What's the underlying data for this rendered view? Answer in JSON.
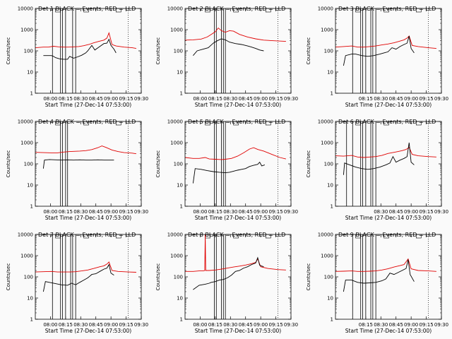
{
  "common": {
    "title_suffix": " BLACK = Events, RED = LLD",
    "xlabel": "Start Time (27-Dec-14 07:53:00)",
    "ylabel": "Counts/sec",
    "colors": {
      "events": "#000000",
      "lld": "#e00000",
      "background": "#fafafa"
    },
    "yscale": "log",
    "ylim": [
      1,
      10000
    ],
    "yticks": [
      "1",
      "10",
      "100",
      "1000",
      "10000"
    ],
    "xlim_minutes": [
      -8,
      97
    ]
  },
  "chart_data": [
    {
      "type": "line",
      "title": "Det 1",
      "xticks": [
        "08:00",
        "08:15",
        "08:30",
        "08:45",
        "09:00",
        "09:15",
        "09:30"
      ],
      "markers": [
        9,
        17,
        19,
        22,
        29,
        32
      ],
      "events": [
        [
          0,
          60
        ],
        [
          8,
          60
        ],
        [
          10,
          55
        ],
        [
          12,
          48
        ],
        [
          16,
          42
        ],
        [
          20,
          40
        ],
        [
          24,
          40
        ],
        [
          26,
          55
        ],
        [
          30,
          45
        ],
        [
          34,
          52
        ],
        [
          38,
          62
        ],
        [
          42,
          80
        ],
        [
          44,
          100
        ],
        [
          48,
          180
        ],
        [
          51,
          110
        ],
        [
          55,
          150
        ],
        [
          60,
          220
        ],
        [
          63,
          230
        ],
        [
          65,
          350
        ],
        [
          67,
          180
        ],
        [
          70,
          120
        ],
        [
          72,
          80
        ]
      ],
      "lld": [
        [
          -8,
          140
        ],
        [
          0,
          150
        ],
        [
          5,
          150
        ],
        [
          10,
          165
        ],
        [
          15,
          155
        ],
        [
          20,
          150
        ],
        [
          25,
          150
        ],
        [
          30,
          155
        ],
        [
          35,
          160
        ],
        [
          40,
          175
        ],
        [
          45,
          200
        ],
        [
          50,
          240
        ],
        [
          55,
          280
        ],
        [
          60,
          320
        ],
        [
          63,
          400
        ],
        [
          65,
          700
        ],
        [
          68,
          200
        ],
        [
          72,
          170
        ],
        [
          80,
          150
        ],
        [
          88,
          140
        ],
        [
          92,
          130
        ]
      ]
    },
    {
      "type": "line",
      "title": "Det 2",
      "xticks": [
        "08:00",
        "08:15",
        "08:30",
        "08:45",
        "09:00",
        "09:15",
        "09:30"
      ],
      "markers": [
        21,
        23,
        28,
        30,
        32
      ],
      "events": [
        [
          0,
          60
        ],
        [
          4,
          100
        ],
        [
          10,
          120
        ],
        [
          15,
          140
        ],
        [
          20,
          230
        ],
        [
          24,
          300
        ],
        [
          28,
          370
        ],
        [
          32,
          330
        ],
        [
          36,
          260
        ],
        [
          42,
          220
        ],
        [
          48,
          200
        ],
        [
          54,
          170
        ],
        [
          58,
          150
        ],
        [
          62,
          130
        ],
        [
          66,
          110
        ],
        [
          70,
          100
        ]
      ],
      "lld": [
        [
          -8,
          320
        ],
        [
          0,
          330
        ],
        [
          8,
          360
        ],
        [
          14,
          450
        ],
        [
          18,
          600
        ],
        [
          22,
          800
        ],
        [
          25,
          1200
        ],
        [
          28,
          900
        ],
        [
          32,
          750
        ],
        [
          36,
          900
        ],
        [
          40,
          850
        ],
        [
          46,
          600
        ],
        [
          54,
          450
        ],
        [
          62,
          370
        ],
        [
          70,
          320
        ],
        [
          80,
          300
        ],
        [
          92,
          280
        ]
      ]
    },
    {
      "type": "line",
      "title": "Det 3",
      "xticks": [
        "08:15",
        "08:30",
        "08:45",
        "09:00",
        "09:15",
        "09:30"
      ],
      "markers": [
        9,
        17,
        19,
        22,
        27,
        29,
        32
      ],
      "events": [
        [
          0,
          20
        ],
        [
          2,
          60
        ],
        [
          8,
          70
        ],
        [
          12,
          70
        ],
        [
          18,
          60
        ],
        [
          24,
          55
        ],
        [
          30,
          60
        ],
        [
          36,
          70
        ],
        [
          40,
          80
        ],
        [
          44,
          90
        ],
        [
          48,
          140
        ],
        [
          52,
          120
        ],
        [
          56,
          160
        ],
        [
          60,
          200
        ],
        [
          63,
          230
        ],
        [
          65,
          500
        ],
        [
          67,
          130
        ],
        [
          70,
          80
        ]
      ],
      "lld": [
        [
          -8,
          150
        ],
        [
          0,
          160
        ],
        [
          8,
          170
        ],
        [
          14,
          150
        ],
        [
          20,
          150
        ],
        [
          26,
          160
        ],
        [
          32,
          170
        ],
        [
          38,
          190
        ],
        [
          44,
          210
        ],
        [
          50,
          240
        ],
        [
          55,
          280
        ],
        [
          60,
          330
        ],
        [
          63,
          400
        ],
        [
          65,
          500
        ],
        [
          68,
          180
        ],
        [
          74,
          160
        ],
        [
          84,
          140
        ],
        [
          92,
          130
        ]
      ]
    },
    {
      "type": "line",
      "title": "Det 4",
      "xticks": [
        "08:00",
        "08:15",
        "08:30",
        "08:45",
        "09:00",
        "09:15",
        "09:30"
      ],
      "markers": [
        17,
        19,
        22,
        24
      ],
      "events": [
        [
          0,
          60
        ],
        [
          1,
          150
        ],
        [
          6,
          160
        ],
        [
          12,
          155
        ],
        [
          18,
          150
        ],
        [
          24,
          155
        ],
        [
          30,
          150
        ],
        [
          36,
          155
        ],
        [
          42,
          150
        ],
        [
          48,
          150
        ],
        [
          54,
          155
        ],
        [
          60,
          150
        ],
        [
          66,
          150
        ],
        [
          70,
          150
        ]
      ],
      "lld": [
        [
          -8,
          350
        ],
        [
          0,
          340
        ],
        [
          8,
          330
        ],
        [
          14,
          330
        ],
        [
          20,
          360
        ],
        [
          26,
          380
        ],
        [
          30,
          390
        ],
        [
          36,
          400
        ],
        [
          42,
          420
        ],
        [
          48,
          470
        ],
        [
          54,
          580
        ],
        [
          58,
          700
        ],
        [
          62,
          600
        ],
        [
          68,
          450
        ],
        [
          74,
          380
        ],
        [
          80,
          340
        ],
        [
          88,
          320
        ],
        [
          92,
          300
        ]
      ]
    },
    {
      "type": "line",
      "title": "Det 5",
      "xticks": [
        "08:00",
        "08:15",
        "08:30",
        "08:45",
        "09:00",
        "09:15",
        "09:30"
      ],
      "markers": [
        21,
        23,
        28,
        30,
        32
      ],
      "events": [
        [
          0,
          12
        ],
        [
          2,
          60
        ],
        [
          8,
          55
        ],
        [
          14,
          48
        ],
        [
          20,
          43
        ],
        [
          26,
          40
        ],
        [
          32,
          38
        ],
        [
          36,
          40
        ],
        [
          40,
          45
        ],
        [
          44,
          50
        ],
        [
          48,
          55
        ],
        [
          52,
          60
        ],
        [
          56,
          75
        ],
        [
          60,
          85
        ],
        [
          64,
          95
        ],
        [
          66,
          120
        ],
        [
          68,
          80
        ],
        [
          71,
          90
        ]
      ],
      "lld": [
        [
          -8,
          200
        ],
        [
          0,
          180
        ],
        [
          6,
          180
        ],
        [
          12,
          200
        ],
        [
          16,
          170
        ],
        [
          22,
          165
        ],
        [
          28,
          160
        ],
        [
          32,
          165
        ],
        [
          38,
          180
        ],
        [
          44,
          230
        ],
        [
          50,
          330
        ],
        [
          56,
          500
        ],
        [
          60,
          580
        ],
        [
          64,
          480
        ],
        [
          70,
          400
        ],
        [
          78,
          280
        ],
        [
          86,
          200
        ],
        [
          92,
          170
        ]
      ]
    },
    {
      "type": "line",
      "title": "Det 6",
      "xticks": [
        "08:30",
        "08:45",
        "09:00",
        "09:15",
        "09:30"
      ],
      "markers": [
        3,
        9,
        17,
        19,
        22,
        27,
        29,
        32
      ],
      "events": [
        [
          0,
          30
        ],
        [
          1,
          110
        ],
        [
          6,
          90
        ],
        [
          12,
          70
        ],
        [
          18,
          60
        ],
        [
          24,
          55
        ],
        [
          30,
          60
        ],
        [
          36,
          70
        ],
        [
          42,
          90
        ],
        [
          46,
          110
        ],
        [
          49,
          220
        ],
        [
          52,
          120
        ],
        [
          56,
          150
        ],
        [
          60,
          180
        ],
        [
          63,
          220
        ],
        [
          65,
          1000
        ],
        [
          67,
          120
        ],
        [
          70,
          90
        ]
      ],
      "lld": [
        [
          -8,
          240
        ],
        [
          0,
          230
        ],
        [
          8,
          250
        ],
        [
          14,
          210
        ],
        [
          20,
          200
        ],
        [
          26,
          210
        ],
        [
          32,
          220
        ],
        [
          38,
          250
        ],
        [
          44,
          310
        ],
        [
          50,
          350
        ],
        [
          54,
          380
        ],
        [
          58,
          420
        ],
        [
          62,
          480
        ],
        [
          65,
          600
        ],
        [
          68,
          280
        ],
        [
          74,
          240
        ],
        [
          84,
          220
        ],
        [
          92,
          210
        ]
      ]
    },
    {
      "type": "line",
      "title": "Det 7",
      "xticks": [
        "08:00",
        "08:15",
        "08:30",
        "08:45",
        "09:00",
        "09:15",
        "09:30"
      ],
      "markers": [
        9,
        17,
        19,
        22,
        27,
        29,
        32
      ],
      "events": [
        [
          0,
          20
        ],
        [
          2,
          60
        ],
        [
          6,
          55
        ],
        [
          12,
          48
        ],
        [
          18,
          42
        ],
        [
          24,
          40
        ],
        [
          28,
          50
        ],
        [
          32,
          42
        ],
        [
          36,
          55
        ],
        [
          40,
          70
        ],
        [
          44,
          90
        ],
        [
          48,
          130
        ],
        [
          52,
          140
        ],
        [
          56,
          180
        ],
        [
          60,
          230
        ],
        [
          63,
          260
        ],
        [
          65,
          380
        ],
        [
          67,
          150
        ],
        [
          70,
          120
        ]
      ],
      "lld": [
        [
          -8,
          170
        ],
        [
          0,
          175
        ],
        [
          8,
          180
        ],
        [
          14,
          170
        ],
        [
          20,
          170
        ],
        [
          26,
          170
        ],
        [
          32,
          175
        ],
        [
          38,
          190
        ],
        [
          44,
          210
        ],
        [
          50,
          250
        ],
        [
          56,
          300
        ],
        [
          60,
          330
        ],
        [
          63,
          400
        ],
        [
          65,
          500
        ],
        [
          68,
          200
        ],
        [
          74,
          180
        ],
        [
          84,
          170
        ],
        [
          92,
          165
        ]
      ]
    },
    {
      "type": "line",
      "title": "Det 8",
      "xticks": [
        "08:00",
        "08:15",
        "08:30",
        "08:45",
        "09:00",
        "09:15",
        "09:30"
      ],
      "markers": [
        21,
        23,
        28,
        30,
        32
      ],
      "events": [
        [
          0,
          25
        ],
        [
          6,
          40
        ],
        [
          12,
          45
        ],
        [
          16,
          50
        ],
        [
          18,
          55
        ],
        [
          22,
          60
        ],
        [
          26,
          70
        ],
        [
          30,
          75
        ],
        [
          34,
          90
        ],
        [
          38,
          120
        ],
        [
          42,
          180
        ],
        [
          46,
          200
        ],
        [
          50,
          260
        ],
        [
          54,
          300
        ],
        [
          58,
          380
        ],
        [
          62,
          450
        ],
        [
          64,
          800
        ],
        [
          66,
          350
        ],
        [
          70,
          300
        ]
      ],
      "lld": [
        [
          -8,
          180
        ],
        [
          0,
          180
        ],
        [
          6,
          190
        ],
        [
          10,
          190
        ],
        [
          11.5,
          200
        ],
        [
          12,
          10000
        ],
        [
          12.5,
          200
        ],
        [
          16,
          200
        ],
        [
          22,
          210
        ],
        [
          28,
          230
        ],
        [
          34,
          260
        ],
        [
          40,
          290
        ],
        [
          46,
          320
        ],
        [
          52,
          360
        ],
        [
          58,
          420
        ],
        [
          62,
          480
        ],
        [
          64,
          700
        ],
        [
          67,
          300
        ],
        [
          74,
          250
        ],
        [
          84,
          220
        ],
        [
          92,
          210
        ]
      ]
    },
    {
      "type": "line",
      "title": "Det 9",
      "xticks": [
        "08:15",
        "08:30",
        "08:45",
        "09:00",
        "09:15",
        "09:30"
      ],
      "markers": [
        9,
        17,
        19,
        22,
        27,
        29,
        32
      ],
      "events": [
        [
          0,
          20
        ],
        [
          2,
          70
        ],
        [
          8,
          70
        ],
        [
          14,
          55
        ],
        [
          20,
          50
        ],
        [
          26,
          52
        ],
        [
          32,
          55
        ],
        [
          38,
          65
        ],
        [
          42,
          80
        ],
        [
          46,
          150
        ],
        [
          50,
          130
        ],
        [
          54,
          160
        ],
        [
          58,
          200
        ],
        [
          62,
          250
        ],
        [
          64,
          650
        ],
        [
          66,
          130
        ],
        [
          70,
          60
        ]
      ],
      "lld": [
        [
          -8,
          180
        ],
        [
          0,
          185
        ],
        [
          8,
          190
        ],
        [
          14,
          180
        ],
        [
          20,
          180
        ],
        [
          26,
          185
        ],
        [
          32,
          190
        ],
        [
          38,
          210
        ],
        [
          44,
          240
        ],
        [
          50,
          290
        ],
        [
          56,
          340
        ],
        [
          60,
          380
        ],
        [
          64,
          700
        ],
        [
          67,
          240
        ],
        [
          74,
          200
        ],
        [
          84,
          190
        ],
        [
          92,
          180
        ]
      ]
    }
  ]
}
